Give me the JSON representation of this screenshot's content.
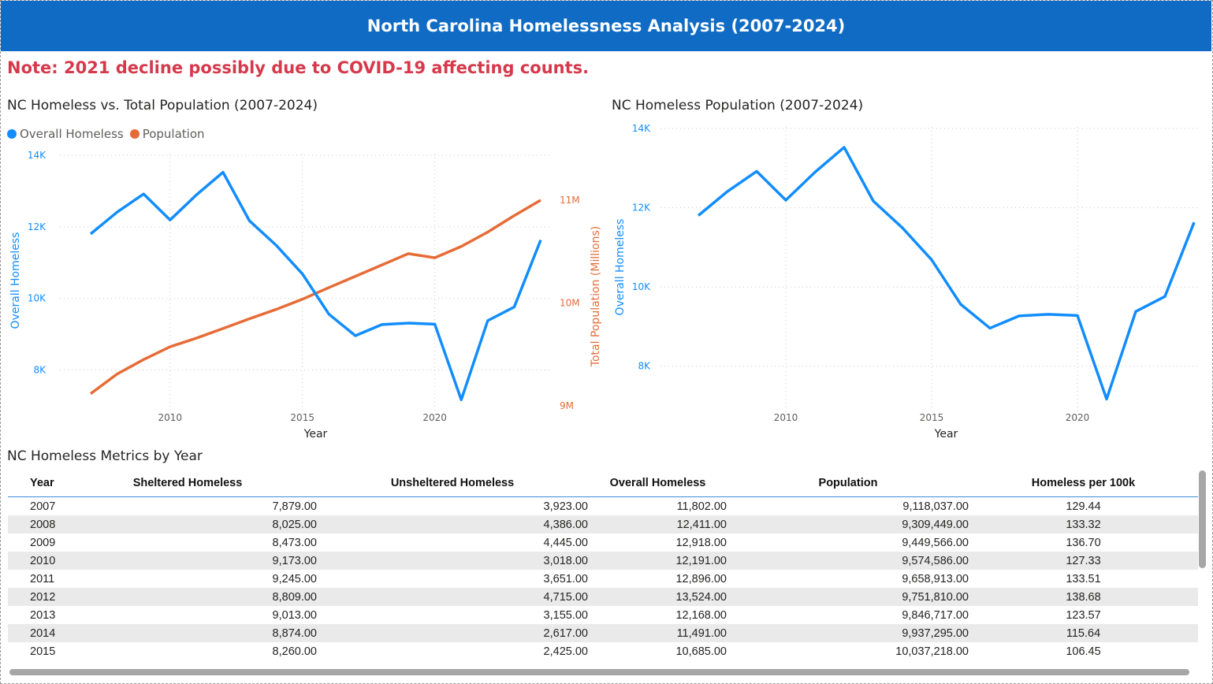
{
  "header": {
    "title": "North Carolina Homelessness Analysis (2007-2024)"
  },
  "note": "Note: 2021 decline possibly due to COVID-19 affecting counts.",
  "colors": {
    "header_bg": "#0f6bc4",
    "note": "#d6394c",
    "homeless": "#118dff",
    "population": "#e66c37"
  },
  "table": {
    "title": "NC Homeless Metrics by Year",
    "columns": [
      "Year",
      "Sheltered Homeless",
      "Unsheltered Homeless",
      "Overall Homeless",
      "Population",
      "Homeless per 100k"
    ],
    "rows": [
      [
        "2007",
        "7,879.00",
        "3,923.00",
        "11,802.00",
        "9,118,037.00",
        "129.44"
      ],
      [
        "2008",
        "8,025.00",
        "4,386.00",
        "12,411.00",
        "9,309,449.00",
        "133.32"
      ],
      [
        "2009",
        "8,473.00",
        "4,445.00",
        "12,918.00",
        "9,449,566.00",
        "136.70"
      ],
      [
        "2010",
        "9,173.00",
        "3,018.00",
        "12,191.00",
        "9,574,586.00",
        "127.33"
      ],
      [
        "2011",
        "9,245.00",
        "3,651.00",
        "12,896.00",
        "9,658,913.00",
        "133.51"
      ],
      [
        "2012",
        "8,809.00",
        "4,715.00",
        "13,524.00",
        "9,751,810.00",
        "138.68"
      ],
      [
        "2013",
        "9,013.00",
        "3,155.00",
        "12,168.00",
        "9,846,717.00",
        "123.57"
      ],
      [
        "2014",
        "8,874.00",
        "2,617.00",
        "11,491.00",
        "9,937,295.00",
        "115.64"
      ],
      [
        "2015",
        "8,260.00",
        "2,425.00",
        "10,685.00",
        "10,037,218.00",
        "106.45"
      ]
    ]
  },
  "chart_data": [
    {
      "type": "line",
      "title": "NC Homeless vs. Total Population (2007-2024)",
      "xlabel": "Year",
      "ylabel": "Overall Homeless",
      "y2label": "Total Population (Millions)",
      "legend_position": "top-left",
      "grid": true,
      "x": [
        2007,
        2008,
        2009,
        2010,
        2011,
        2012,
        2013,
        2014,
        2015,
        2016,
        2017,
        2018,
        2019,
        2020,
        2021,
        2022,
        2023,
        2024
      ],
      "xticks": [
        "2010",
        "2015",
        "2020"
      ],
      "xtick_values": [
        2010,
        2015,
        2020
      ],
      "ylim": [
        7000,
        14000
      ],
      "yticks": [
        "8K",
        "10K",
        "12K",
        "14K"
      ],
      "ytick_values": [
        8000,
        10000,
        12000,
        14000
      ],
      "y2lim": [
        9000000,
        11100000
      ],
      "y2ticks": [
        "9M",
        "10M",
        "11M"
      ],
      "y2tick_values": [
        9000000,
        10000000,
        11000000
      ],
      "series": [
        {
          "name": "Overall Homeless",
          "axis": "left",
          "values": [
            11802,
            12411,
            12918,
            12191,
            12896,
            13524,
            12168,
            11491,
            10685,
            9560,
            8960,
            9270,
            9310,
            9280,
            7170,
            9380,
            9760,
            11630
          ]
        },
        {
          "name": "Population",
          "axis": "right",
          "values": [
            9118037,
            9309449,
            9449566,
            9574586,
            9658913,
            9751810,
            9846717,
            9937295,
            10037218,
            10150000,
            10260000,
            10370000,
            10480000,
            10440000,
            10550000,
            10690000,
            10850000,
            11000000
          ]
        }
      ]
    },
    {
      "type": "line",
      "title": "NC Homeless Population (2007-2024)",
      "xlabel": "Year",
      "ylabel": "Overall Homeless",
      "grid": true,
      "x": [
        2007,
        2008,
        2009,
        2010,
        2011,
        2012,
        2013,
        2014,
        2015,
        2016,
        2017,
        2018,
        2019,
        2020,
        2021,
        2022,
        2023,
        2024
      ],
      "xticks": [
        "2010",
        "2015",
        "2020"
      ],
      "xtick_values": [
        2010,
        2015,
        2020
      ],
      "ylim": [
        7000,
        14000
      ],
      "yticks": [
        "8K",
        "10K",
        "12K",
        "14K"
      ],
      "ytick_values": [
        8000,
        10000,
        12000,
        14000
      ],
      "series": [
        {
          "name": "Overall Homeless",
          "values": [
            11802,
            12411,
            12918,
            12191,
            12896,
            13524,
            12168,
            11491,
            10685,
            9560,
            8960,
            9270,
            9310,
            9280,
            7170,
            9380,
            9760,
            11630
          ]
        }
      ]
    }
  ]
}
